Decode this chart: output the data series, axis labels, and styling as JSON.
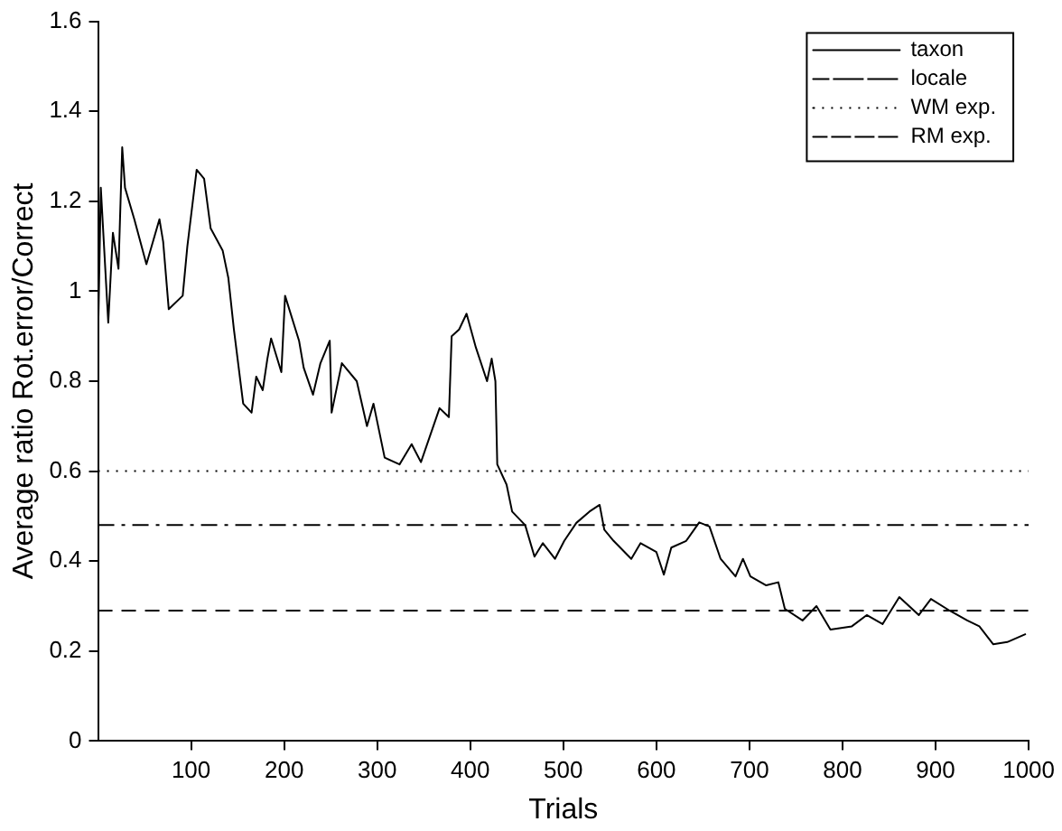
{
  "chart_data": {
    "type": "line",
    "xlabel": "Trials",
    "ylabel": "Average ratio Rot.error/Correct",
    "xlim": [
      0,
      1000
    ],
    "xticks": [
      100,
      200,
      300,
      400,
      500,
      600,
      700,
      800,
      900,
      1000
    ],
    "ylim": [
      0,
      1.6
    ],
    "yticks": [
      0,
      0.2,
      0.4,
      0.6,
      0.8,
      1,
      1.2,
      1.4,
      1.6
    ],
    "grid": false,
    "legend": "top right",
    "marker": "none",
    "series": [
      {
        "name": "taxon",
        "color": "#000000",
        "line_style": "solid",
        "x": [
          0,
          3,
          11,
          16,
          22,
          26,
          29,
          39,
          52,
          66,
          70,
          76,
          91,
          96,
          106,
          114,
          121,
          134,
          140,
          146,
          156,
          165,
          170,
          177,
          182,
          186,
          197,
          201,
          216,
          221,
          231,
          239,
          249,
          251,
          262,
          278,
          289,
          296,
          308,
          324,
          337,
          347,
          367,
          377,
          380,
          388,
          396,
          406,
          418,
          423,
          427,
          429,
          439,
          445,
          459,
          469,
          478,
          491,
          501,
          514,
          528,
          539,
          544,
          554,
          573,
          583,
          600,
          608,
          616,
          632,
          646,
          657,
          669,
          685,
          693,
          701,
          718,
          731,
          738,
          757,
          772,
          787,
          810,
          826,
          843,
          861,
          882,
          895,
          915,
          934,
          947,
          962,
          977,
          997
        ],
        "values": [
          0.89,
          1.23,
          0.93,
          1.13,
          1.05,
          1.32,
          1.23,
          1.16,
          1.06,
          1.16,
          1.11,
          0.96,
          0.99,
          1.1,
          1.27,
          1.25,
          1.14,
          1.09,
          1.03,
          0.915,
          0.75,
          0.73,
          0.81,
          0.78,
          0.85,
          0.895,
          0.82,
          0.99,
          0.89,
          0.83,
          0.77,
          0.84,
          0.89,
          0.73,
          0.84,
          0.8,
          0.7,
          0.75,
          0.63,
          0.615,
          0.66,
          0.62,
          0.74,
          0.72,
          0.9,
          0.915,
          0.95,
          0.875,
          0.8,
          0.85,
          0.8,
          0.615,
          0.57,
          0.51,
          0.48,
          0.41,
          0.44,
          0.405,
          0.445,
          0.485,
          0.51,
          0.525,
          0.47,
          0.445,
          0.405,
          0.44,
          0.42,
          0.37,
          0.43,
          0.445,
          0.486,
          0.477,
          0.405,
          0.366,
          0.405,
          0.366,
          0.346,
          0.353,
          0.294,
          0.268,
          0.3,
          0.248,
          0.255,
          0.28,
          0.26,
          0.32,
          0.28,
          0.316,
          0.29,
          0.268,
          0.255,
          0.215,
          0.22,
          0.238
        ]
      },
      {
        "name": "locale",
        "color": "#000000",
        "line_style": "dashdot",
        "x": [
          0,
          1000
        ],
        "values": [
          0.48,
          0.48
        ]
      },
      {
        "name": "WM exp.",
        "color": "#000000",
        "line_style": "dotted",
        "x": [
          0,
          1000
        ],
        "values": [
          0.6,
          0.6
        ]
      },
      {
        "name": "RM exp.",
        "color": "#000000",
        "line_style": "dashed",
        "x": [
          0,
          1000
        ],
        "values": [
          0.29,
          0.29
        ]
      }
    ]
  }
}
